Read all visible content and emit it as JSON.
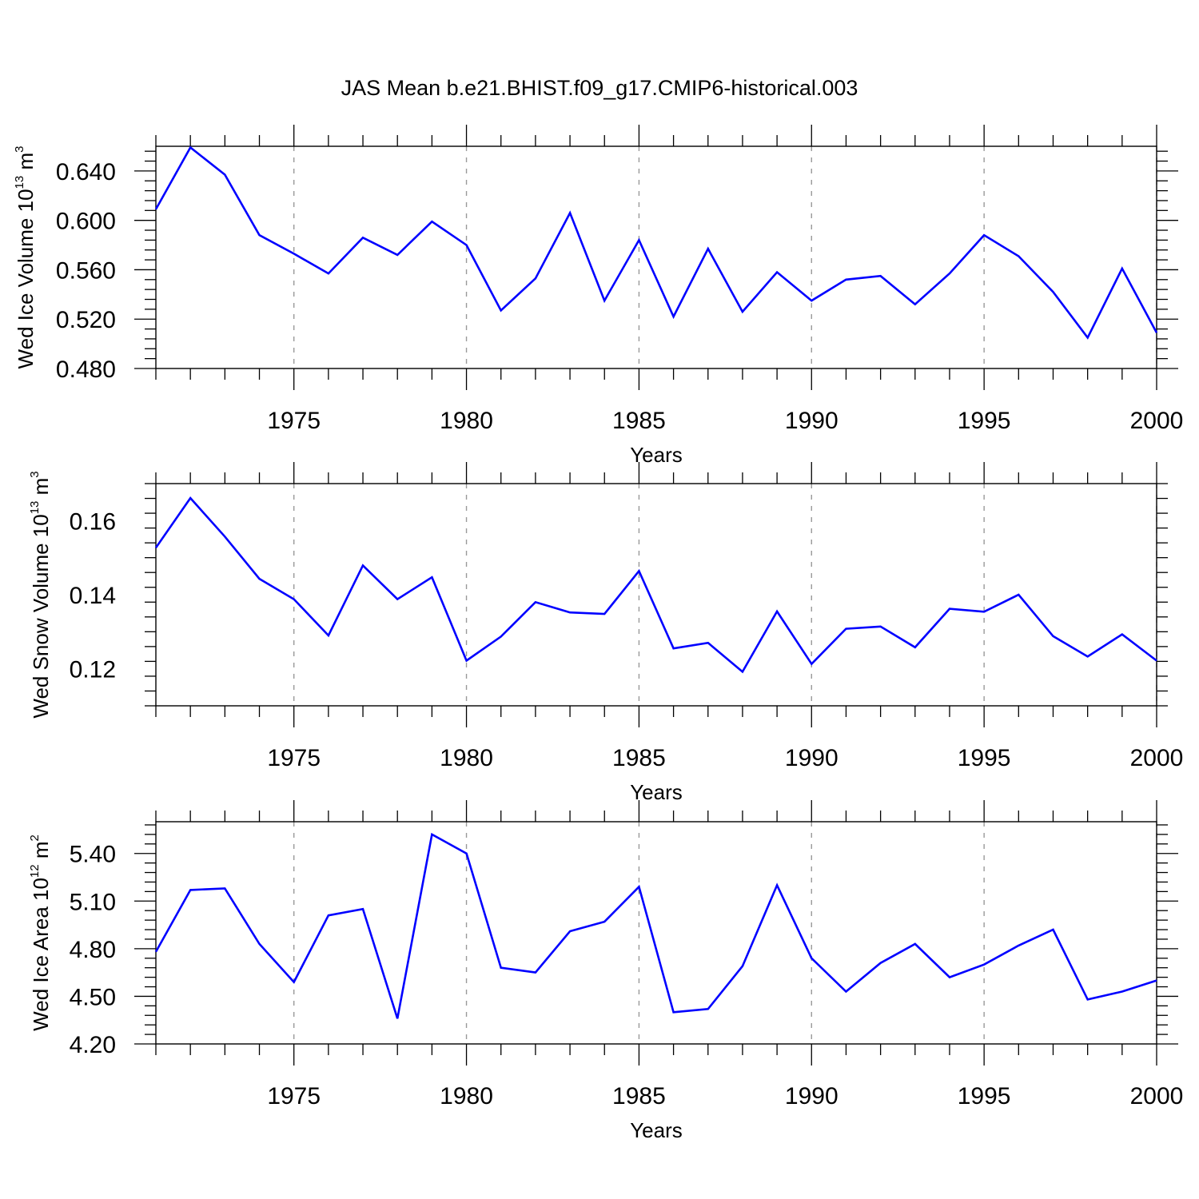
{
  "title": "JAS Mean b.e21.BHIST.f09_g17.CMIP6-historical.003",
  "chart_data": [
    {
      "type": "line",
      "ylabel": {
        "prefix": "Wed Ice Volume 10",
        "exp": "13",
        "unit": " m",
        "unit_exp": "3"
      },
      "xlabel": "Years",
      "xlim": [
        1971,
        2000
      ],
      "ylim": [
        0.48,
        0.66
      ],
      "x_ticks": [
        "1975",
        "1980",
        "1985",
        "1990",
        "1995",
        "2000"
      ],
      "y_ticks": [
        "0.480",
        "0.520",
        "0.560",
        "0.600",
        "0.640"
      ],
      "series": [
        {
          "name": "Wed Ice Volume",
          "color": "#0000ff",
          "x": [
            1971,
            1972,
            1973,
            1974,
            1975,
            1976,
            1977,
            1978,
            1979,
            1980,
            1981,
            1982,
            1983,
            1984,
            1985,
            1986,
            1987,
            1988,
            1989,
            1990,
            1991,
            1992,
            1993,
            1994,
            1995,
            1996,
            1997,
            1998,
            1999,
            2000
          ],
          "values": [
            0.609,
            0.659,
            0.637,
            0.588,
            0.573,
            0.557,
            0.586,
            0.572,
            0.599,
            0.58,
            0.527,
            0.553,
            0.606,
            0.535,
            0.584,
            0.522,
            0.577,
            0.526,
            0.558,
            0.535,
            0.552,
            0.555,
            0.532,
            0.557,
            0.588,
            0.571,
            0.542,
            0.505,
            0.561,
            0.509
          ]
        }
      ]
    },
    {
      "type": "line",
      "ylabel": {
        "prefix": "Wed Snow Volume 10",
        "exp": "13",
        "unit": " m",
        "unit_exp": "3"
      },
      "xlabel": "Years",
      "xlim": [
        1971,
        2000
      ],
      "ylim": [
        0.11,
        0.17
      ],
      "x_ticks": [
        "1975",
        "1980",
        "1985",
        "1990",
        "1995",
        "2000"
      ],
      "y_ticks": [
        "0.12",
        "0.14",
        "0.16"
      ],
      "series": [
        {
          "name": "Wed Snow Volume",
          "color": "#0000ff",
          "x": [
            1971,
            1972,
            1973,
            1974,
            1975,
            1976,
            1977,
            1978,
            1979,
            1980,
            1981,
            1982,
            1983,
            1984,
            1985,
            1986,
            1987,
            1988,
            1989,
            1990,
            1991,
            1992,
            1993,
            1994,
            1995,
            1996,
            1997,
            1998,
            1999,
            2000
          ],
          "values": [
            0.1527,
            0.1661,
            0.1557,
            0.1443,
            0.1388,
            0.129,
            0.1479,
            0.1388,
            0.1447,
            0.1222,
            0.1287,
            0.138,
            0.1352,
            0.1348,
            0.1464,
            0.1255,
            0.127,
            0.1192,
            0.1355,
            0.1213,
            0.1308,
            0.1314,
            0.1258,
            0.1362,
            0.1354,
            0.14,
            0.1288,
            0.1233,
            0.1293,
            0.1222
          ]
        }
      ]
    },
    {
      "type": "line",
      "ylabel": {
        "prefix": "Wed Ice Area 10",
        "exp": "12",
        "unit": " m",
        "unit_exp": "2"
      },
      "xlabel": "Years",
      "xlim": [
        1971,
        2000
      ],
      "ylim": [
        4.2,
        5.6
      ],
      "x_ticks": [
        "1975",
        "1980",
        "1985",
        "1990",
        "1995",
        "2000"
      ],
      "y_ticks": [
        "4.20",
        "4.50",
        "4.80",
        "5.10",
        "5.40"
      ],
      "series": [
        {
          "name": "Wed Ice Area",
          "color": "#0000ff",
          "x": [
            1971,
            1972,
            1973,
            1974,
            1975,
            1976,
            1977,
            1978,
            1979,
            1980,
            1981,
            1982,
            1983,
            1984,
            1985,
            1986,
            1987,
            1988,
            1989,
            1990,
            1991,
            1992,
            1993,
            1994,
            1995,
            1996,
            1997,
            1998,
            1999,
            2000
          ],
          "values": [
            4.78,
            5.17,
            5.18,
            4.83,
            4.59,
            5.01,
            5.05,
            4.36,
            5.52,
            5.4,
            4.68,
            4.65,
            4.91,
            4.97,
            5.19,
            4.4,
            4.42,
            4.69,
            5.2,
            4.74,
            4.53,
            4.71,
            4.83,
            4.62,
            4.7,
            4.82,
            4.92,
            4.48,
            4.53,
            4.6
          ]
        }
      ]
    }
  ]
}
